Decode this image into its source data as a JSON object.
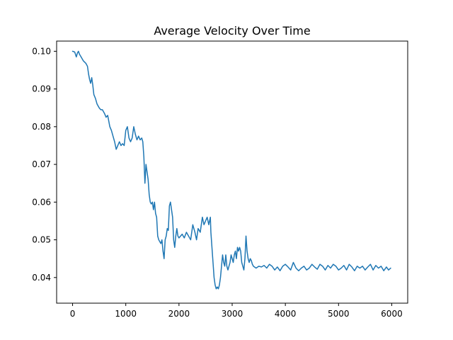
{
  "chart_data": {
    "type": "line",
    "title": "Average Velocity Over Time",
    "xlabel": "",
    "ylabel": "",
    "xlim": [
      -300,
      6300
    ],
    "ylim": [
      0.0332,
      0.1027
    ],
    "x_ticks": [
      0,
      1000,
      2000,
      3000,
      4000,
      5000,
      6000
    ],
    "y_ticks": [
      0.04,
      0.05,
      0.06,
      0.07,
      0.08,
      0.09,
      0.1
    ],
    "x_tick_labels": [
      "0",
      "1000",
      "2000",
      "3000",
      "4000",
      "5000",
      "6000"
    ],
    "y_tick_labels": [
      "0.04",
      "0.05",
      "0.06",
      "0.07",
      "0.08",
      "0.09",
      "0.10"
    ],
    "grid": false,
    "legend": "none",
    "series": [
      {
        "color": "#1f77b4",
        "points": [
          [
            0,
            0.1
          ],
          [
            40,
            0.0998
          ],
          [
            70,
            0.0985
          ],
          [
            90,
            0.0995
          ],
          [
            110,
            0.1
          ],
          [
            130,
            0.0992
          ],
          [
            160,
            0.0985
          ],
          [
            200,
            0.0975
          ],
          [
            250,
            0.0968
          ],
          [
            280,
            0.096
          ],
          [
            300,
            0.094
          ],
          [
            320,
            0.0925
          ],
          [
            340,
            0.0915
          ],
          [
            360,
            0.093
          ],
          [
            380,
            0.091
          ],
          [
            400,
            0.0885
          ],
          [
            430,
            0.0875
          ],
          [
            460,
            0.086
          ],
          [
            500,
            0.085
          ],
          [
            530,
            0.0845
          ],
          [
            560,
            0.0845
          ],
          [
            600,
            0.0835
          ],
          [
            630,
            0.0825
          ],
          [
            660,
            0.083
          ],
          [
            700,
            0.08
          ],
          [
            730,
            0.079
          ],
          [
            760,
            0.0775
          ],
          [
            790,
            0.076
          ],
          [
            820,
            0.074
          ],
          [
            850,
            0.075
          ],
          [
            880,
            0.076
          ],
          [
            910,
            0.075
          ],
          [
            940,
            0.0755
          ],
          [
            970,
            0.075
          ],
          [
            1000,
            0.079
          ],
          [
            1030,
            0.08
          ],
          [
            1060,
            0.077
          ],
          [
            1090,
            0.076
          ],
          [
            1120,
            0.077
          ],
          [
            1150,
            0.08
          ],
          [
            1180,
            0.078
          ],
          [
            1210,
            0.0765
          ],
          [
            1240,
            0.0775
          ],
          [
            1270,
            0.0765
          ],
          [
            1300,
            0.077
          ],
          [
            1320,
            0.076
          ],
          [
            1340,
            0.072
          ],
          [
            1360,
            0.065
          ],
          [
            1380,
            0.07
          ],
          [
            1400,
            0.068
          ],
          [
            1420,
            0.066
          ],
          [
            1440,
            0.062
          ],
          [
            1460,
            0.06
          ],
          [
            1480,
            0.0595
          ],
          [
            1500,
            0.06
          ],
          [
            1520,
            0.058
          ],
          [
            1540,
            0.06
          ],
          [
            1560,
            0.057
          ],
          [
            1580,
            0.056
          ],
          [
            1600,
            0.051
          ],
          [
            1620,
            0.05
          ],
          [
            1640,
            0.0495
          ],
          [
            1660,
            0.049
          ],
          [
            1680,
            0.05
          ],
          [
            1700,
            0.047
          ],
          [
            1720,
            0.045
          ],
          [
            1740,
            0.05
          ],
          [
            1760,
            0.051
          ],
          [
            1780,
            0.053
          ],
          [
            1800,
            0.0525
          ],
          [
            1820,
            0.059
          ],
          [
            1840,
            0.06
          ],
          [
            1860,
            0.058
          ],
          [
            1880,
            0.056
          ],
          [
            1900,
            0.05
          ],
          [
            1920,
            0.048
          ],
          [
            1940,
            0.051
          ],
          [
            1960,
            0.053
          ],
          [
            1980,
            0.051
          ],
          [
            2000,
            0.0505
          ],
          [
            2030,
            0.051
          ],
          [
            2060,
            0.0515
          ],
          [
            2100,
            0.0505
          ],
          [
            2140,
            0.052
          ],
          [
            2180,
            0.051
          ],
          [
            2220,
            0.05
          ],
          [
            2260,
            0.054
          ],
          [
            2300,
            0.052
          ],
          [
            2330,
            0.05
          ],
          [
            2360,
            0.053
          ],
          [
            2400,
            0.052
          ],
          [
            2440,
            0.056
          ],
          [
            2470,
            0.054
          ],
          [
            2500,
            0.055
          ],
          [
            2530,
            0.056
          ],
          [
            2560,
            0.054
          ],
          [
            2590,
            0.056
          ],
          [
            2600,
            0.052
          ],
          [
            2620,
            0.048
          ],
          [
            2640,
            0.044
          ],
          [
            2660,
            0.04
          ],
          [
            2680,
            0.038
          ],
          [
            2700,
            0.037
          ],
          [
            2720,
            0.0375
          ],
          [
            2740,
            0.037
          ],
          [
            2760,
            0.038
          ],
          [
            2780,
            0.04
          ],
          [
            2800,
            0.043
          ],
          [
            2820,
            0.046
          ],
          [
            2840,
            0.044
          ],
          [
            2860,
            0.043
          ],
          [
            2880,
            0.046
          ],
          [
            2900,
            0.043
          ],
          [
            2920,
            0.042
          ],
          [
            2940,
            0.043
          ],
          [
            2960,
            0.044
          ],
          [
            2980,
            0.046
          ],
          [
            3000,
            0.045
          ],
          [
            3020,
            0.044
          ],
          [
            3040,
            0.046
          ],
          [
            3060,
            0.047
          ],
          [
            3080,
            0.045
          ],
          [
            3100,
            0.048
          ],
          [
            3120,
            0.047
          ],
          [
            3140,
            0.048
          ],
          [
            3160,
            0.047
          ],
          [
            3180,
            0.044
          ],
          [
            3200,
            0.043
          ],
          [
            3220,
            0.042
          ],
          [
            3240,
            0.045
          ],
          [
            3260,
            0.051
          ],
          [
            3280,
            0.047
          ],
          [
            3300,
            0.045
          ],
          [
            3320,
            0.044
          ],
          [
            3340,
            0.045
          ],
          [
            3360,
            0.0445
          ],
          [
            3380,
            0.0435
          ],
          [
            3400,
            0.043
          ],
          [
            3450,
            0.0425
          ],
          [
            3500,
            0.043
          ],
          [
            3550,
            0.0428
          ],
          [
            3600,
            0.0432
          ],
          [
            3650,
            0.0425
          ],
          [
            3700,
            0.0435
          ],
          [
            3750,
            0.043
          ],
          [
            3800,
            0.042
          ],
          [
            3850,
            0.0428
          ],
          [
            3900,
            0.0418
          ],
          [
            3950,
            0.043
          ],
          [
            4000,
            0.0435
          ],
          [
            4050,
            0.0428
          ],
          [
            4100,
            0.042
          ],
          [
            4150,
            0.044
          ],
          [
            4200,
            0.0425
          ],
          [
            4250,
            0.0418
          ],
          [
            4300,
            0.0425
          ],
          [
            4350,
            0.043
          ],
          [
            4400,
            0.042
          ],
          [
            4450,
            0.0425
          ],
          [
            4500,
            0.0435
          ],
          [
            4550,
            0.0428
          ],
          [
            4600,
            0.0422
          ],
          [
            4650,
            0.0435
          ],
          [
            4700,
            0.043
          ],
          [
            4750,
            0.042
          ],
          [
            4800,
            0.0432
          ],
          [
            4850,
            0.0425
          ],
          [
            4900,
            0.0435
          ],
          [
            4950,
            0.043
          ],
          [
            5000,
            0.042
          ],
          [
            5050,
            0.0425
          ],
          [
            5100,
            0.0432
          ],
          [
            5150,
            0.042
          ],
          [
            5200,
            0.0435
          ],
          [
            5250,
            0.0428
          ],
          [
            5300,
            0.0418
          ],
          [
            5350,
            0.043
          ],
          [
            5400,
            0.0425
          ],
          [
            5450,
            0.043
          ],
          [
            5500,
            0.042
          ],
          [
            5550,
            0.0428
          ],
          [
            5600,
            0.0435
          ],
          [
            5650,
            0.042
          ],
          [
            5700,
            0.0432
          ],
          [
            5750,
            0.0425
          ],
          [
            5800,
            0.043
          ],
          [
            5850,
            0.0418
          ],
          [
            5900,
            0.0428
          ],
          [
            5940,
            0.042
          ],
          [
            5980,
            0.0425
          ]
        ]
      }
    ]
  }
}
